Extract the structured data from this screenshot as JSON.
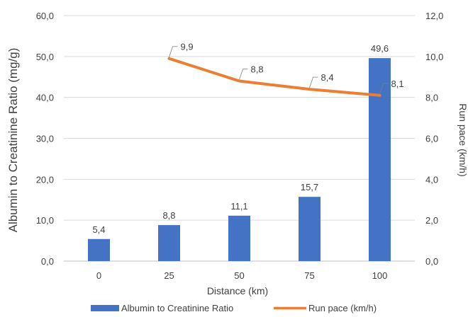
{
  "chart_data": {
    "type": "bar",
    "categories": [
      "0",
      "25",
      "50",
      "75",
      "100"
    ],
    "xlabel": "Distance (km)",
    "ylabel": "Albumin to Creatinine Ratio (mg/g)",
    "y2label": "Run pace (km/h)",
    "ylim": [
      0,
      60
    ],
    "y2lim": [
      0,
      12
    ],
    "yticks": [
      "0,0",
      "10,0",
      "20,0",
      "30,0",
      "40,0",
      "50,0",
      "60,0"
    ],
    "y2ticks": [
      "0,0",
      "2,0",
      "4,0",
      "6,0",
      "8,0",
      "10,0",
      "12,0"
    ],
    "grid": true,
    "legend_position": "bottom",
    "series": [
      {
        "name": "Albumin to Creatinine Ratio",
        "type": "bar",
        "axis": "left",
        "color": "#4472C4",
        "values": [
          5.4,
          8.8,
          11.1,
          15.7,
          49.6
        ],
        "labels": [
          "5,4",
          "8,8",
          "11,1",
          "15,7",
          "49,6"
        ]
      },
      {
        "name": "Run pace (km/h)",
        "type": "line",
        "axis": "right",
        "color": "#ED7D31",
        "values": [
          null,
          9.9,
          8.8,
          8.4,
          8.1
        ],
        "labels": [
          "",
          "9,9",
          "8,8",
          "8,4",
          "8,1"
        ]
      }
    ]
  }
}
